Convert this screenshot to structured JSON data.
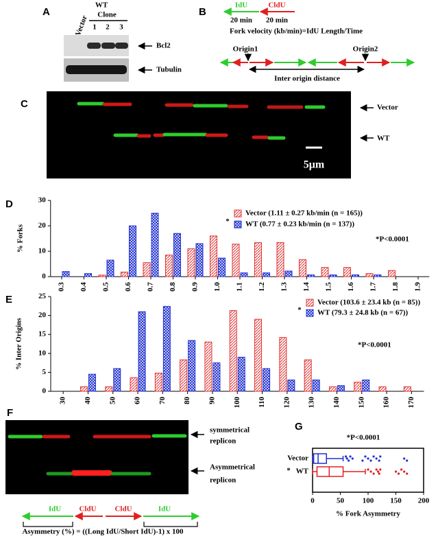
{
  "panel_a": {
    "label": "A",
    "lanes": [
      "Vector",
      "1",
      "2",
      "3"
    ],
    "group": "WT",
    "group_sub": "Clone",
    "bands": [
      "Bcl2",
      "Tubulin"
    ]
  },
  "panel_b": {
    "label": "B",
    "arrows": [
      "IdU",
      "CldU"
    ],
    "times": [
      "20 min",
      "20 min"
    ],
    "formula": "Fork velocity (kb/min)=IdU Length/Time",
    "origins": [
      "Origin1",
      "Origin2"
    ],
    "distance": "Inter origin distance"
  },
  "panel_c": {
    "label": "C",
    "rows": [
      "Vector",
      "WT"
    ],
    "scale": "5μm"
  },
  "panel_f": {
    "label": "F",
    "rows": [
      [
        "symmetrical",
        "replicon"
      ],
      [
        "Asymmetrical",
        "replicon"
      ]
    ],
    "segments": [
      "IdU",
      "CldU",
      "CldU",
      "IdU"
    ],
    "formula": "Asymmetry (%) = ((Long IdU/Short IdU)-1) x 100"
  },
  "chart_data": [
    {
      "type": "bar",
      "label": "D",
      "ylabel": "% Forks",
      "categories": [
        "0.3",
        "0.4",
        "0.5",
        "0.6",
        "0.7",
        "0.8",
        "0.9",
        "1.0",
        "1.1",
        "1.2",
        "1.3",
        "1.4",
        "1.5",
        "1.6",
        "1.7",
        "1.8",
        "1.9"
      ],
      "series": [
        {
          "name": "Vector (1.11 ± 0.27 kb/min (n = 165))",
          "color": "#e03030",
          "values": [
            0,
            0,
            0.6,
            1.8,
            5.5,
            8.5,
            11,
            16,
            12.8,
            13.4,
            13.4,
            6.7,
            3.6,
            3.6,
            1.2,
            2.4,
            0
          ]
        },
        {
          "name": "WT (0.77 ± 0.23 kb/min (n = 137))",
          "color": "#2030d0",
          "values": [
            2,
            1.2,
            6.5,
            20,
            25,
            17,
            13,
            7.3,
            1.5,
            1.5,
            2.2,
            0.7,
            0.7,
            0.7,
            0.7,
            0,
            0
          ]
        }
      ],
      "ylim": [
        0,
        30
      ],
      "yticks": [
        0,
        10,
        20,
        30
      ],
      "legend_mark": "*",
      "annotation": "*P<0.0001"
    },
    {
      "type": "bar",
      "label": "E",
      "ylabel": "% Inter Origins",
      "categories": [
        "30",
        "40",
        "50",
        "60",
        "70",
        "80",
        "90",
        "100",
        "110",
        "120",
        "130",
        "140",
        "150",
        "160",
        "170"
      ],
      "series": [
        {
          "name": "Vector (103.6 ± 23.4 kb (n = 85))",
          "color": "#e03030",
          "values": [
            0,
            1.2,
            1.2,
            3.6,
            4.8,
            8.3,
            13,
            21.3,
            19,
            14.2,
            8.3,
            1.2,
            2.4,
            1.2,
            1.2
          ]
        },
        {
          "name": "WT (79.3 ± 24.8 kb (n = 67))",
          "color": "#2030d0",
          "values": [
            0,
            4.5,
            6,
            21,
            22.4,
            13.4,
            7.5,
            9,
            6,
            3,
            3,
            1.5,
            3,
            0,
            0
          ]
        }
      ],
      "ylim": [
        0,
        25
      ],
      "yticks": [
        0,
        5,
        10,
        15,
        20,
        25
      ],
      "legend_mark": "*",
      "annotation": "*P<0.0001"
    },
    {
      "type": "box",
      "label": "G",
      "title": "*P<0.0001",
      "xlabel": "% Fork Asymmetry",
      "categories": [
        "Vector",
        "WT"
      ],
      "annotation": "*",
      "boxes": [
        {
          "color": "#2030d0",
          "whisker_low": 0,
          "q1": 2,
          "median": 10,
          "q3": 25,
          "whisker_high": 55,
          "outliers": [
            60,
            62,
            65,
            68,
            72,
            90,
            95,
            100,
            105,
            110,
            115,
            120,
            122,
            165,
            170
          ]
        },
        {
          "color": "#e02020",
          "whisker_low": 0,
          "q1": 8,
          "median": 30,
          "q3": 55,
          "whisker_high": 95,
          "outliers": [
            100,
            105,
            110,
            115,
            118,
            120,
            122,
            150,
            155,
            160,
            165,
            170
          ]
        }
      ],
      "xlim": [
        0,
        200
      ],
      "xticks": [
        0,
        50,
        100,
        150,
        200
      ]
    }
  ]
}
